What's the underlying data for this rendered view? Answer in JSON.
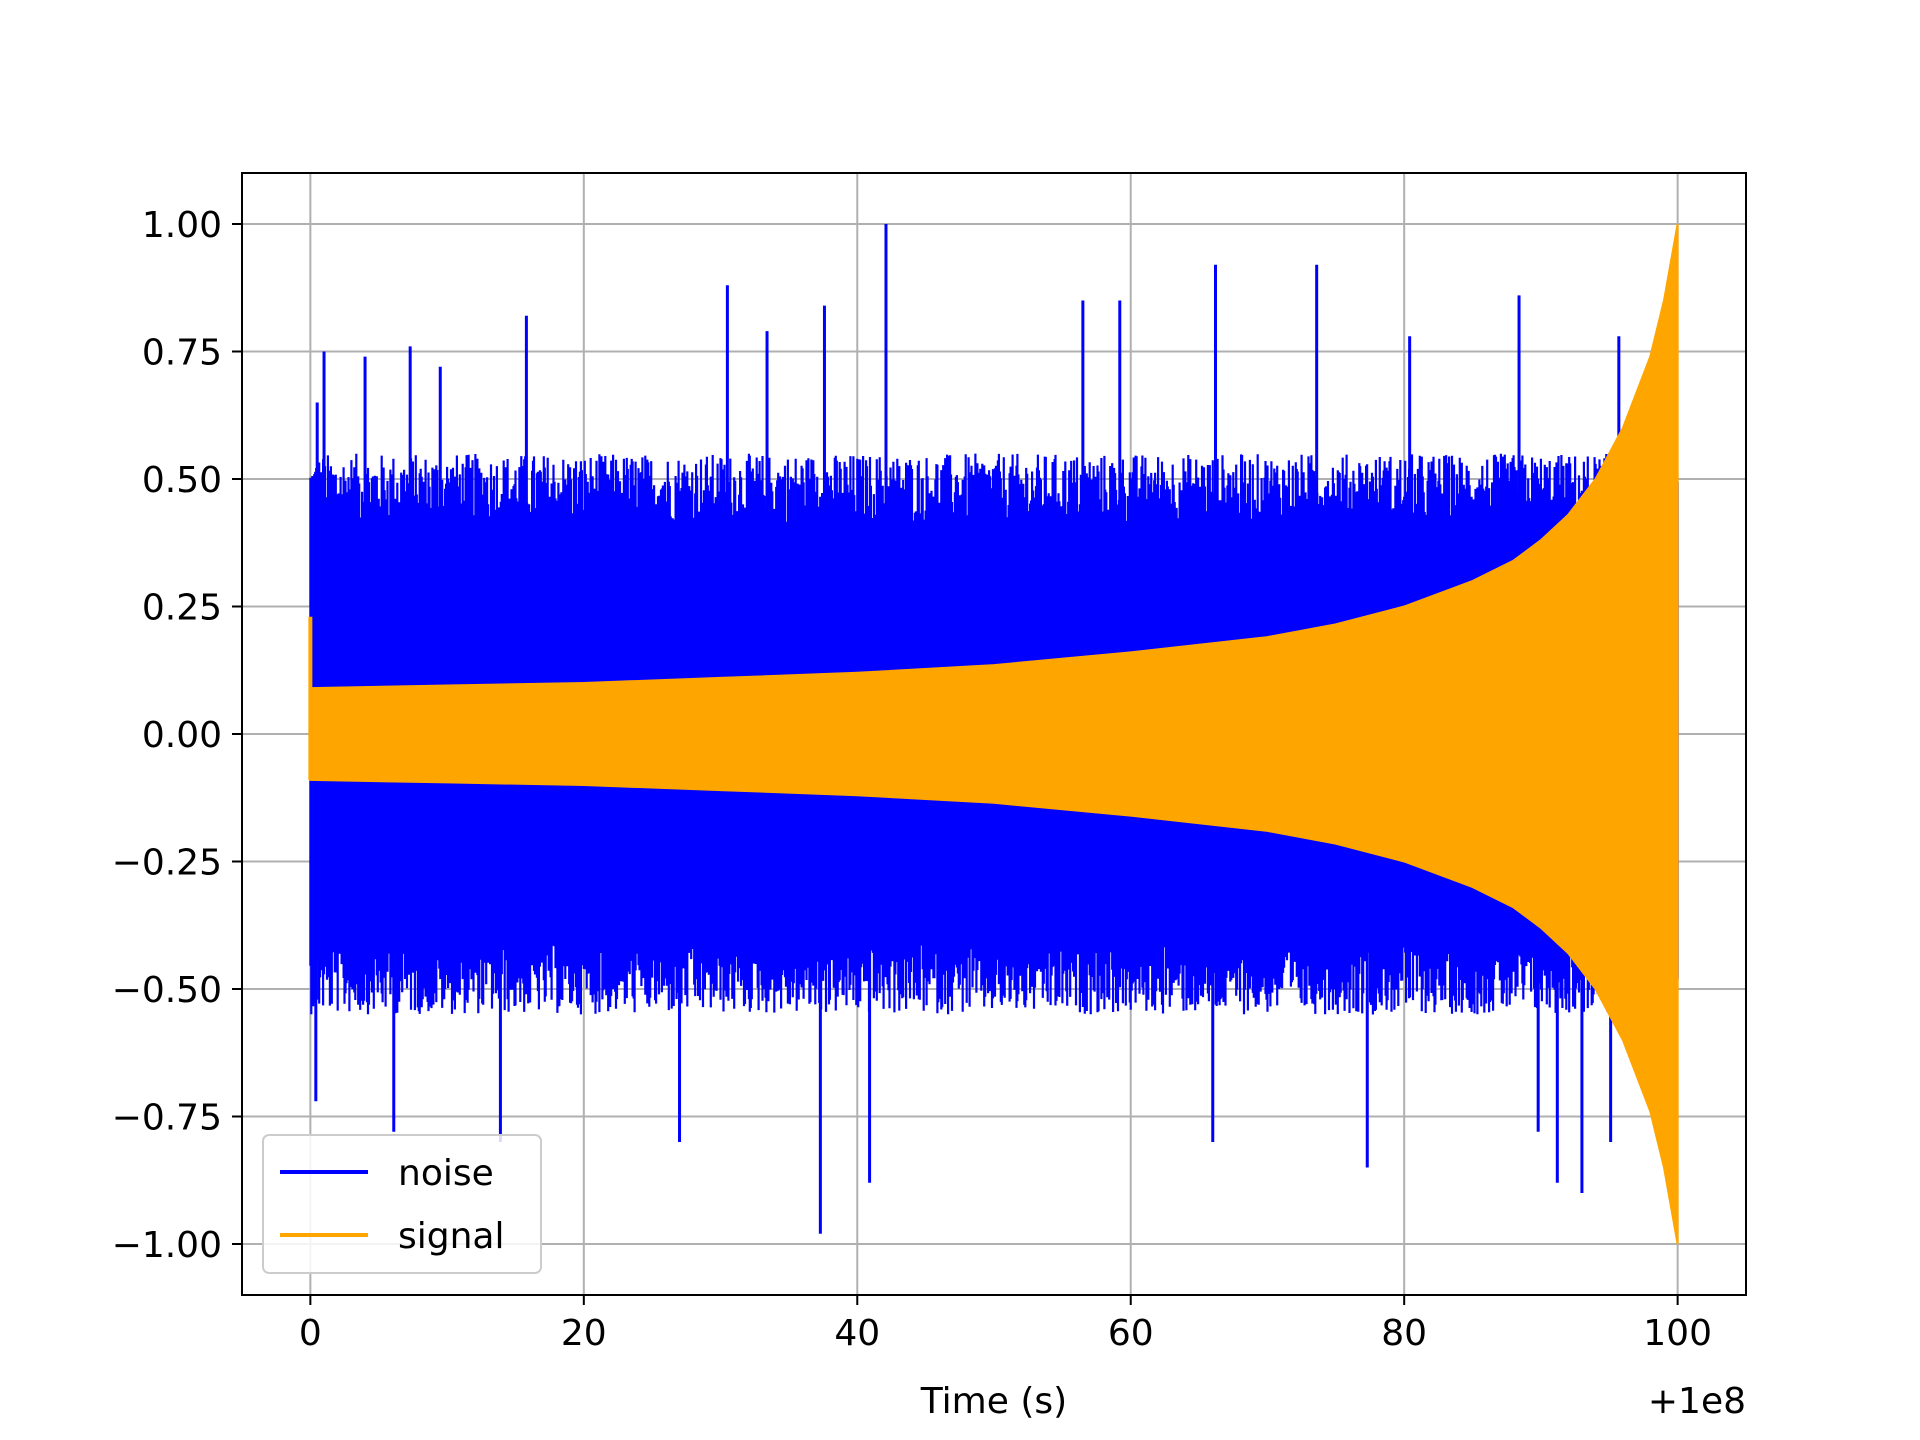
{
  "chart_data": {
    "type": "line",
    "title": "",
    "xlabel": "Time (s)",
    "ylabel": "",
    "x_offset_label": "+1e8",
    "xlim": [
      -5,
      105
    ],
    "ylim": [
      -1.1,
      1.1
    ],
    "grid": true,
    "legend_position": "lower-left",
    "x_ticks": [
      {
        "value": 0,
        "label": "0"
      },
      {
        "value": 20,
        "label": "20"
      },
      {
        "value": 40,
        "label": "40"
      },
      {
        "value": 60,
        "label": "60"
      },
      {
        "value": 80,
        "label": "80"
      },
      {
        "value": 100,
        "label": "100"
      }
    ],
    "y_ticks": [
      {
        "value": 1.0,
        "label": "1.00"
      },
      {
        "value": 0.75,
        "label": "0.75"
      },
      {
        "value": 0.5,
        "label": "0.50"
      },
      {
        "value": 0.25,
        "label": "0.25"
      },
      {
        "value": 0.0,
        "label": "0.00"
      },
      {
        "value": -0.25,
        "label": "−0.25"
      },
      {
        "value": -0.5,
        "label": "−0.50"
      },
      {
        "value": -0.75,
        "label": "−0.75"
      },
      {
        "value": -1.0,
        "label": "−1.00"
      }
    ],
    "series": [
      {
        "name": "noise",
        "color": "#0000ff",
        "x_range": [
          0,
          100
        ],
        "typical_band": [
          -0.55,
          0.55
        ],
        "peaks": [
          [
            0.5,
            0.65
          ],
          [
            1.0,
            0.75
          ],
          [
            4.0,
            0.74
          ],
          [
            7.3,
            0.76
          ],
          [
            9.5,
            0.72
          ],
          [
            15.8,
            0.82
          ],
          [
            30.5,
            0.88
          ],
          [
            33.4,
            0.79
          ],
          [
            37.6,
            0.84
          ],
          [
            42.1,
            1.0
          ],
          [
            56.5,
            0.85
          ],
          [
            59.2,
            0.85
          ],
          [
            66.2,
            0.92
          ],
          [
            73.6,
            0.92
          ],
          [
            80.4,
            0.78
          ],
          [
            88.4,
            0.86
          ],
          [
            95.7,
            0.78
          ]
        ],
        "troughs": [
          [
            0.4,
            -0.72
          ],
          [
            6.1,
            -0.78
          ],
          [
            13.9,
            -0.8
          ],
          [
            27.0,
            -0.8
          ],
          [
            37.3,
            -0.98
          ],
          [
            40.9,
            -0.88
          ],
          [
            66.0,
            -0.8
          ],
          [
            77.3,
            -0.85
          ],
          [
            89.8,
            -0.78
          ],
          [
            91.2,
            -0.88
          ],
          [
            93.0,
            -0.9
          ],
          [
            95.1,
            -0.8
          ]
        ]
      },
      {
        "name": "signal",
        "color": "#ffa500",
        "x": [
          0,
          10,
          20,
          30,
          40,
          50,
          60,
          70,
          75,
          80,
          85,
          88,
          90,
          92,
          94,
          96,
          98,
          99,
          100
        ],
        "envelope": [
          0.09,
          0.095,
          0.1,
          0.11,
          0.12,
          0.135,
          0.16,
          0.19,
          0.215,
          0.25,
          0.3,
          0.34,
          0.38,
          0.43,
          0.5,
          0.6,
          0.74,
          0.85,
          1.0
        ]
      }
    ]
  }
}
